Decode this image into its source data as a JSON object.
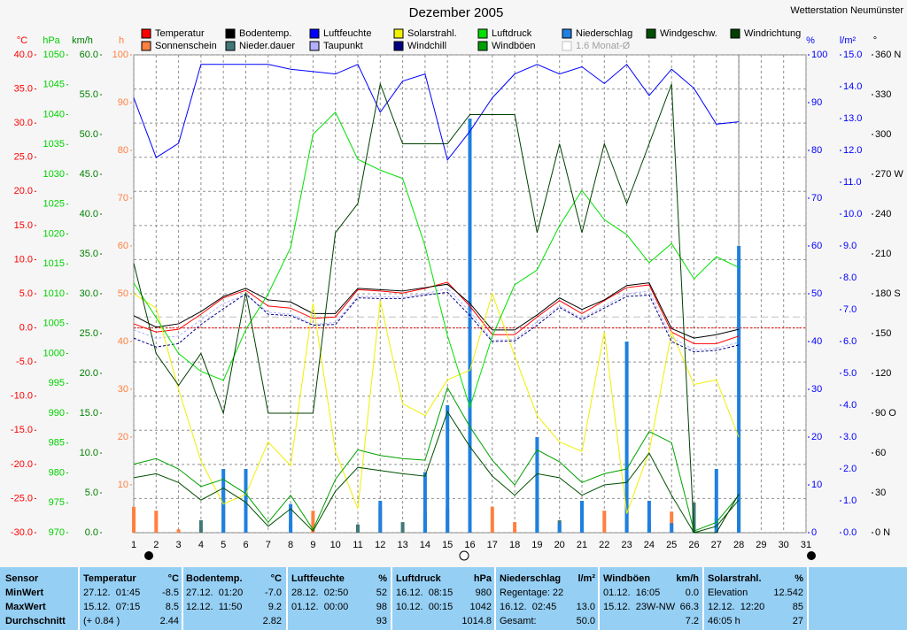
{
  "chart_data": {
    "type": "line",
    "title": "Dezember 2005",
    "subtitle": "Wetterstation Neumünster",
    "xlim": [
      1,
      31
    ],
    "xticks": [
      1,
      2,
      3,
      4,
      5,
      6,
      7,
      8,
      9,
      10,
      11,
      12,
      13,
      14,
      15,
      16,
      17,
      18,
      19,
      20,
      21,
      22,
      23,
      24,
      25,
      26,
      27,
      28,
      29,
      30,
      31
    ],
    "x": [
      1,
      2,
      3,
      4,
      5,
      6,
      7,
      8,
      9,
      10,
      11,
      12,
      13,
      14,
      15,
      16,
      17,
      18,
      19,
      20,
      21,
      22,
      23,
      24,
      25,
      26,
      27,
      28
    ],
    "grid": true,
    "axes": [
      {
        "id": "temp",
        "label": "°C",
        "color": "#ff0000",
        "lim": [
          -30,
          40
        ],
        "ticks": [
          {
            "value": 40,
            "label": "40.0"
          },
          {
            "value": 35,
            "label": "35.0"
          },
          {
            "value": 30,
            "label": "30.0"
          },
          {
            "value": 25,
            "label": "25.0"
          },
          {
            "value": 20,
            "label": "20.0"
          },
          {
            "value": 15,
            "label": "15.0"
          },
          {
            "value": 10,
            "label": "10.0"
          },
          {
            "value": 5,
            "label": "5.0"
          },
          {
            "value": 0,
            "label": "0.0"
          },
          {
            "value": -5,
            "label": "-5.0"
          },
          {
            "value": -10,
            "label": "-10.0"
          },
          {
            "value": -15,
            "label": "-15.0"
          },
          {
            "value": -20,
            "label": "-20.0"
          },
          {
            "value": -25,
            "label": "-25.0"
          },
          {
            "value": -30,
            "label": "-30.0"
          }
        ]
      },
      {
        "id": "hpa",
        "label": "hPa",
        "color": "#00d000",
        "lim": [
          970,
          1050
        ],
        "ticks": [
          1050,
          1045,
          1040,
          1035,
          1030,
          1025,
          1020,
          1015,
          1010,
          1005,
          1000,
          995,
          990,
          985,
          980,
          975,
          970
        ]
      },
      {
        "id": "kmh",
        "label": "km/h",
        "color": "#008000",
        "lim": [
          0,
          60
        ],
        "ticks": [
          {
            "value": 60,
            "label": "60.0"
          },
          {
            "value": 55,
            "label": "55.0"
          },
          {
            "value": 50,
            "label": "50.0"
          },
          {
            "value": 45,
            "label": "45.0"
          },
          {
            "value": 40,
            "label": "40.0"
          },
          {
            "value": 35,
            "label": "35.0"
          },
          {
            "value": 30,
            "label": "30.0"
          },
          {
            "value": 25,
            "label": "25.0"
          },
          {
            "value": 20,
            "label": "20.0"
          },
          {
            "value": 15,
            "label": "15.0"
          },
          {
            "value": 10,
            "label": "10.0"
          },
          {
            "value": 5,
            "label": "5.0"
          },
          {
            "value": 0,
            "label": "0.0"
          }
        ]
      },
      {
        "id": "h",
        "label": "h",
        "color": "#ff8040",
        "lim": [
          0,
          100
        ],
        "ticks": [
          100,
          90,
          80,
          70,
          60,
          50,
          40,
          30,
          20,
          10
        ]
      },
      {
        "id": "pct",
        "label": "%",
        "color": "#0000ff",
        "lim": [
          0,
          100
        ],
        "ticks": [
          100,
          90,
          80,
          70,
          60,
          50,
          40,
          30,
          20,
          10,
          0
        ]
      },
      {
        "id": "lm2",
        "label": "l/m²",
        "color": "#0000ff",
        "lim": [
          0,
          15
        ],
        "ticks": [
          {
            "value": 15,
            "label": "15.0"
          },
          {
            "value": 14,
            "label": "14.0"
          },
          {
            "value": 13,
            "label": "13.0"
          },
          {
            "value": 12,
            "label": "12.0"
          },
          {
            "value": 11,
            "label": "11.0"
          },
          {
            "value": 10,
            "label": "10.0"
          },
          {
            "value": 9,
            "label": "9.0"
          },
          {
            "value": 8,
            "label": "8.0"
          },
          {
            "value": 7,
            "label": "7.0"
          },
          {
            "value": 6,
            "label": "6.0"
          },
          {
            "value": 5,
            "label": "5.0"
          },
          {
            "value": 4,
            "label": "4.0"
          },
          {
            "value": 3,
            "label": "3.0"
          },
          {
            "value": 2,
            "label": "2.0"
          },
          {
            "value": 1,
            "label": "1.0"
          },
          {
            "value": 0,
            "label": "0.0"
          }
        ]
      },
      {
        "id": "deg",
        "label": "°",
        "color": "#000000",
        "lim": [
          0,
          360
        ],
        "ticks": [
          {
            "value": 360,
            "label": "360 N"
          },
          330,
          300,
          {
            "value": 270,
            "label": "270 W"
          },
          240,
          210,
          {
            "value": 180,
            "label": "180 S"
          },
          150,
          120,
          {
            "value": 90,
            "label": "90 O"
          },
          60,
          30,
          {
            "value": 0,
            "label": "0 N"
          }
        ]
      }
    ],
    "series": [
      {
        "name": "Temperatur",
        "color": "#ff0000",
        "axis": "temp",
        "kind": "line",
        "values": [
          0.6,
          -0.6,
          -0.2,
          2.0,
          4.4,
          5.5,
          3.2,
          2.9,
          1.4,
          1.6,
          5.6,
          5.4,
          5.1,
          5.8,
          6.7,
          3.2,
          -1.0,
          -1.0,
          1.6,
          4.0,
          2.1,
          4.0,
          5.9,
          6.3,
          -0.6,
          -2.3,
          -2.3,
          -1.2
        ]
      },
      {
        "name": "Sonnenschein",
        "color": "#ff8040",
        "axis": "h",
        "kind": "bar",
        "x": [
          1,
          2,
          3,
          9,
          12,
          16,
          17,
          18,
          22,
          25,
          27
        ],
        "values": [
          5.4,
          4.6,
          0.7,
          4.6,
          5.4,
          4.0,
          5.4,
          2.2,
          4.6,
          4.4,
          1.7
        ]
      },
      {
        "name": "Bodentemp.",
        "color": "#000000",
        "axis": "temp",
        "kind": "line",
        "values": [
          1.8,
          0.1,
          0.6,
          2.4,
          4.6,
          5.8,
          4.1,
          3.8,
          2.1,
          2.1,
          5.8,
          5.6,
          5.4,
          5.9,
          6.4,
          3.6,
          -0.3,
          -0.3,
          1.9,
          4.4,
          2.7,
          4.1,
          6.2,
          6.6,
          -0.1,
          -1.5,
          -1.0,
          -0.2
        ]
      },
      {
        "name": "Nieder.dauer",
        "color": "#407878",
        "axis": "h",
        "kind": "bar",
        "x": [
          4,
          5,
          6,
          8,
          11,
          13,
          14,
          15,
          16,
          19,
          20,
          21,
          23,
          24,
          26,
          27,
          28
        ],
        "values": [
          2.6,
          8.7,
          6.3,
          1.9,
          1.7,
          2.2,
          4.1,
          5.0,
          6.9,
          6.9,
          2.6,
          4.4,
          5.0,
          2.2,
          6.3,
          3.1,
          8.1
        ]
      },
      {
        "name": "Luftfeuchte",
        "color": "#0000ff",
        "axis": "pct",
        "kind": "line",
        "values": [
          91,
          78.5,
          81.5,
          98,
          98,
          98,
          98,
          97,
          96.5,
          96,
          98,
          88,
          94.5,
          96,
          78,
          84,
          91,
          96,
          98,
          96,
          97.5,
          94,
          98,
          91.5,
          97,
          93,
          85.5,
          86
        ]
      },
      {
        "name": "Taupunkt",
        "color": "#b0b0ff",
        "axis": "temp",
        "kind": "line",
        "dash": true,
        "values": [
          -0.3,
          -1.5,
          -1.2,
          1.2,
          3.6,
          4.8,
          2.3,
          2.0,
          0.5,
          0.8,
          4.6,
          4.6,
          4.5,
          5.0,
          5.8,
          2.4,
          -1.8,
          -1.7,
          0.9,
          3.2,
          1.4,
          3.2,
          5.0,
          5.4,
          -1.4,
          -3.2,
          -3.0,
          -2.1
        ]
      },
      {
        "name": "Solarstrahl.",
        "color": "#f0f000",
        "axis": "pct",
        "kind": "line",
        "values": [
          50,
          47,
          30,
          15,
          6,
          8,
          19,
          14,
          48,
          17,
          5,
          48.5,
          27,
          24.5,
          32,
          34,
          50,
          37,
          24.5,
          19,
          17,
          42,
          4,
          17,
          42,
          31,
          32,
          20
        ]
      },
      {
        "name": "Windchill",
        "color": "#000080",
        "axis": "temp",
        "kind": "line",
        "dash": true,
        "values": [
          -1.5,
          -2.8,
          -2.3,
          0.5,
          2.8,
          5.0,
          2.0,
          1.8,
          0.4,
          0.5,
          4.4,
          4.3,
          4.3,
          4.8,
          5.2,
          1.8,
          -2.0,
          -1.9,
          0.4,
          3.0,
          1.2,
          2.9,
          4.6,
          4.8,
          -2.0,
          -3.5,
          -3.3,
          -2.5
        ]
      },
      {
        "name": "Luftdruck",
        "color": "#00e000",
        "axis": "hpa",
        "kind": "line",
        "values": [
          1011.8,
          1006,
          1000,
          997,
          995.5,
          1004,
          1010,
          1017.7,
          1036.7,
          1040.4,
          1032.5,
          1030.7,
          1029.3,
          1018,
          1003,
          991,
          1002.9,
          1011.5,
          1014,
          1021.4,
          1027.3,
          1022.4,
          1019.9,
          1015.2,
          1018.4,
          1012.5,
          1016.2,
          1014.4
        ]
      },
      {
        "name": "Windböen",
        "color": "#00a000",
        "axis": "kmh",
        "kind": "line",
        "values": [
          8.6,
          9.3,
          8.0,
          5.8,
          6.7,
          4.9,
          1.3,
          4.7,
          0.4,
          6.7,
          10.4,
          9.7,
          9.3,
          9.1,
          18.2,
          13.3,
          9.1,
          6.0,
          10.4,
          8.9,
          6.3,
          7.4,
          8.0,
          12.7,
          11.3,
          0.2,
          1.3,
          4.7
        ]
      },
      {
        "name": "Niederschlag",
        "color": "#1e80e0",
        "axis": "lm2",
        "kind": "bar",
        "x": [
          5,
          6,
          8,
          12,
          14,
          15,
          16,
          19,
          20,
          21,
          23,
          24,
          25,
          27,
          28
        ],
        "values": [
          2.0,
          2.0,
          0.9,
          1.0,
          1.9,
          4.0,
          13.0,
          3.0,
          0.3,
          1.0,
          6.0,
          1.0,
          0.3,
          2.0,
          9.0
        ]
      },
      {
        "name": "1.6 Monat-Ø",
        "color": "#c0c0c0",
        "axis": "temp",
        "kind": "reference",
        "value": 1.6
      },
      {
        "name": "Windgeschw.",
        "color": "#005000",
        "axis": "kmh",
        "kind": "line",
        "values": [
          6.9,
          7.4,
          6.3,
          4.1,
          5.6,
          3.8,
          0.8,
          3.0,
          0.2,
          5.2,
          8.2,
          7.8,
          7.4,
          7.1,
          15.2,
          10.8,
          7.1,
          4.7,
          7.4,
          6.9,
          4.7,
          6.0,
          6.3,
          10.0,
          4.7,
          0,
          0.8,
          4.1
        ]
      },
      {
        "name": "Windrichtung",
        "color": "#004000",
        "axis": "deg",
        "kind": "line",
        "values": [
          203,
          135,
          111,
          135,
          90,
          181,
          90,
          90,
          90,
          226,
          248,
          338,
          293,
          293,
          293,
          315,
          315,
          315,
          226,
          293,
          226,
          293,
          248,
          293,
          338,
          0,
          0,
          29
        ]
      }
    ]
  },
  "table": {
    "columns": [
      {
        "name": "Sensor"
      },
      {
        "name": "Temperatur",
        "unit": "°C"
      },
      {
        "name": "Bodentemp.",
        "unit": "°C"
      },
      {
        "name": "Luftfeuchte",
        "unit": "%"
      },
      {
        "name": "Luftdruck",
        "unit": "hPa"
      },
      {
        "name": "Niederschlag",
        "unit": "l/m²"
      },
      {
        "name": "Windböen",
        "unit": "km/h"
      },
      {
        "name": "Solarstrahl.",
        "unit": "%"
      }
    ],
    "rows": [
      {
        "label": "MinWert",
        "cells": [
          {
            "left": "27.12.  01:45",
            "right": "-8.5"
          },
          {
            "left": "27.12.  01:20",
            "right": "-7.0"
          },
          {
            "left": "28.12.  02:50",
            "right": "52"
          },
          {
            "left": "16.12.  08:15",
            "right": "980"
          },
          {
            "left": "Regentage: 22"
          },
          {
            "left": "01.12.  16:05",
            "right": "0.0"
          },
          {
            "left": "Elevation",
            "right": "12.542"
          }
        ]
      },
      {
        "label": "MaxWert",
        "cells": [
          {
            "left": "15.12.  07:15",
            "right": "8.5"
          },
          {
            "left": "12.12.  11:50",
            "right": "9.2"
          },
          {
            "left": "01.12.  00:00",
            "right": "98"
          },
          {
            "left": "10.12.  00:15",
            "right": "1042"
          },
          {
            "left": "16.12.  02:45",
            "right": "13.0"
          },
          {
            "left": "15.12.  23W-NW",
            "right": "66.3"
          },
          {
            "left": "12.12.  12:20",
            "right": "85"
          }
        ]
      },
      {
        "label": "Durchschnitt",
        "cells": [
          {
            "left": "(+ 0.84 )",
            "right": "2.44"
          },
          {
            "right": "2.82"
          },
          {
            "right": "93"
          },
          {
            "right": "1014.8"
          },
          {
            "left": "Gesamt:",
            "right": "50.0"
          },
          {
            "right": "7.2"
          },
          {
            "left": "46:05 h",
            "right": "27"
          }
        ]
      }
    ]
  }
}
